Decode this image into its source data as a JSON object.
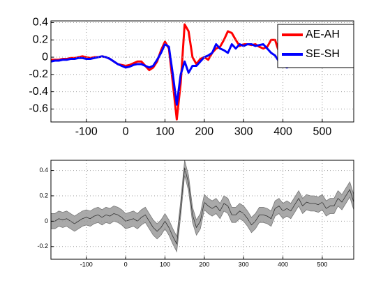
{
  "chart_data": [
    {
      "type": "line",
      "x": [
        -190,
        -180,
        -170,
        -160,
        -150,
        -140,
        -130,
        -120,
        -110,
        -100,
        -90,
        -80,
        -70,
        -60,
        -50,
        -40,
        -30,
        -20,
        -10,
        0,
        10,
        20,
        30,
        40,
        50,
        60,
        70,
        80,
        90,
        100,
        110,
        120,
        130,
        140,
        150,
        160,
        170,
        180,
        190,
        200,
        210,
        220,
        230,
        240,
        250,
        260,
        270,
        280,
        290,
        300,
        310,
        320,
        330,
        340,
        350,
        360,
        370,
        380,
        390,
        400,
        410,
        420,
        430,
        440,
        450,
        460,
        470,
        480,
        490,
        500,
        510,
        520,
        530,
        540,
        550,
        560,
        570,
        580
      ],
      "xlim": [
        -190,
        580
      ],
      "xticks": [
        -100,
        0,
        100,
        200,
        300,
        400,
        500
      ],
      "ylim": [
        -0.75,
        0.42
      ],
      "yticks": [
        0.4,
        0.2,
        0,
        -0.2,
        -0.4,
        -0.6
      ],
      "grid": true,
      "legend": "upper right",
      "series": [
        {
          "name": "AE-AH",
          "color": "#ff0000",
          "values": [
            -0.03,
            -0.03,
            -0.03,
            -0.02,
            -0.02,
            -0.01,
            -0.01,
            0,
            0.01,
            0,
            -0.01,
            0,
            0,
            0.01,
            0,
            -0.02,
            -0.05,
            -0.08,
            -0.09,
            -0.1,
            -0.09,
            -0.07,
            -0.05,
            -0.05,
            -0.1,
            -0.15,
            -0.12,
            -0.05,
            0.08,
            0.18,
            0.1,
            -0.3,
            -0.72,
            -0.3,
            0.38,
            0.3,
            0,
            -0.08,
            -0.02,
            0,
            -0.03,
            0.05,
            0.1,
            0.12,
            0.2,
            0.3,
            0.28,
            0.2,
            0.13,
            0.15,
            0.15,
            0.14,
            0.15,
            0.12,
            0.1,
            0.12,
            0.2,
            0.2,
            0.06,
            0.02,
            0.04,
            0.06,
            0.07,
            0.07,
            0.07,
            0.06,
            0.06,
            0.06,
            0.06,
            0.06,
            0.06,
            0.06,
            0.06,
            0.07,
            0.07,
            0.07,
            0.08,
            0.08
          ]
        },
        {
          "name": "SE-SH",
          "color": "#0000ff",
          "values": [
            -0.05,
            -0.04,
            -0.04,
            -0.03,
            -0.03,
            -0.02,
            -0.02,
            -0.01,
            -0.01,
            -0.02,
            -0.02,
            -0.01,
            0,
            0.01,
            0,
            -0.02,
            -0.05,
            -0.08,
            -0.1,
            -0.12,
            -0.11,
            -0.09,
            -0.08,
            -0.08,
            -0.1,
            -0.12,
            -0.1,
            -0.03,
            0.05,
            0.15,
            0.12,
            -0.2,
            -0.55,
            -0.2,
            -0.05,
            -0.18,
            -0.1,
            -0.1,
            -0.05,
            0,
            0.02,
            0.05,
            0.15,
            0.1,
            0.08,
            0.05,
            0.15,
            0.1,
            0.15,
            0.13,
            0.15,
            0.15,
            0.13,
            0.14,
            0.15,
            0.1,
            0.05,
            0.02,
            -0.05,
            -0.1,
            -0.12,
            -0.1,
            null,
            null,
            null,
            null,
            null,
            null,
            null,
            null,
            null,
            null,
            null,
            null,
            null,
            null,
            null,
            null
          ]
        }
      ]
    },
    {
      "type": "line",
      "x": [
        -190,
        -180,
        -170,
        -160,
        -150,
        -140,
        -130,
        -120,
        -110,
        -100,
        -90,
        -80,
        -70,
        -60,
        -50,
        -40,
        -30,
        -20,
        -10,
        0,
        10,
        20,
        30,
        40,
        50,
        60,
        70,
        80,
        90,
        100,
        110,
        120,
        130,
        140,
        150,
        160,
        170,
        180,
        190,
        200,
        210,
        220,
        230,
        240,
        250,
        260,
        270,
        280,
        290,
        300,
        310,
        320,
        330,
        340,
        350,
        360,
        370,
        380,
        390,
        400,
        410,
        420,
        430,
        440,
        450,
        460,
        470,
        480,
        490,
        500,
        510,
        520,
        530,
        540,
        550,
        560,
        570,
        580
      ],
      "xlim": [
        -190,
        580
      ],
      "xticks": [
        -100,
        0,
        100,
        200,
        300,
        400,
        500
      ],
      "ylim": [
        -0.3,
        0.48
      ],
      "yticks": [
        0.4,
        0.2,
        0,
        -0.2
      ],
      "grid": true,
      "band": {
        "color": "#a9a9a9",
        "upper": [
          0.06,
          0.06,
          0.08,
          0.07,
          0.08,
          0.06,
          0.04,
          0.06,
          0.08,
          0.09,
          0.08,
          0.1,
          0.11,
          0.09,
          0.11,
          0.1,
          0.12,
          0.11,
          0.09,
          0.06,
          0.07,
          0.08,
          0.06,
          0.09,
          0.11,
          0.06,
          0.01,
          -0.02,
          0.01,
          0.06,
          0.01,
          -0.06,
          -0.12,
          0.16,
          0.48,
          0.36,
          0.11,
          0.01,
          0.06,
          0.21,
          0.18,
          0.16,
          0.18,
          0.14,
          0.2,
          0.18,
          0.11,
          0.11,
          0.14,
          0.12,
          0.08,
          0.03,
          0.06,
          0.11,
          0.11,
          0.1,
          0.08,
          0.16,
          0.18,
          0.14,
          0.16,
          0.14,
          0.19,
          0.24,
          0.18,
          0.21,
          0.2,
          0.2,
          0.19,
          0.21,
          0.16,
          0.18,
          0.18,
          0.24,
          0.21,
          0.26,
          0.31,
          0.21
        ],
        "lower": [
          -0.06,
          -0.06,
          -0.04,
          -0.05,
          -0.04,
          -0.06,
          -0.08,
          -0.06,
          -0.04,
          -0.03,
          -0.04,
          -0.02,
          -0.01,
          -0.03,
          -0.01,
          -0.02,
          0,
          -0.01,
          -0.03,
          -0.06,
          -0.05,
          -0.04,
          -0.06,
          -0.03,
          -0.01,
          -0.06,
          -0.11,
          -0.14,
          -0.11,
          -0.06,
          -0.11,
          -0.18,
          -0.24,
          0.04,
          0.36,
          0.24,
          -0.01,
          -0.11,
          -0.06,
          0.09,
          0.06,
          0.04,
          0.06,
          0.02,
          0.08,
          0.06,
          -0.01,
          -0.01,
          0.02,
          0,
          -0.04,
          -0.09,
          -0.06,
          -0.01,
          -0.01,
          -0.02,
          -0.04,
          0.04,
          0.06,
          0.02,
          0.04,
          0.02,
          0.07,
          0.12,
          0.06,
          0.09,
          0.08,
          0.08,
          0.07,
          0.09,
          0.04,
          0.06,
          0.06,
          0.12,
          0.09,
          0.14,
          0.19,
          0.09
        ]
      },
      "series": [
        {
          "color": "#333333",
          "values": [
            0,
            0,
            0.02,
            0.01,
            0.02,
            0,
            -0.02,
            0,
            0.02,
            0.03,
            0.02,
            0.04,
            0.05,
            0.03,
            0.05,
            0.04,
            0.06,
            0.05,
            0.03,
            0,
            0.01,
            0.02,
            0,
            0.03,
            0.05,
            0,
            -0.05,
            -0.08,
            -0.05,
            0,
            -0.05,
            -0.12,
            -0.18,
            0.1,
            0.42,
            0.3,
            0.05,
            -0.05,
            0,
            0.15,
            0.12,
            0.1,
            0.12,
            0.08,
            0.14,
            0.12,
            0.05,
            0.05,
            0.08,
            0.06,
            0.02,
            -0.03,
            0,
            0.05,
            0.05,
            0.04,
            0.02,
            0.1,
            0.12,
            0.08,
            0.1,
            0.08,
            0.13,
            0.18,
            0.12,
            0.15,
            0.14,
            0.14,
            0.13,
            0.15,
            0.1,
            0.12,
            0.12,
            0.18,
            0.15,
            0.2,
            0.25,
            0.15
          ]
        }
      ]
    }
  ]
}
